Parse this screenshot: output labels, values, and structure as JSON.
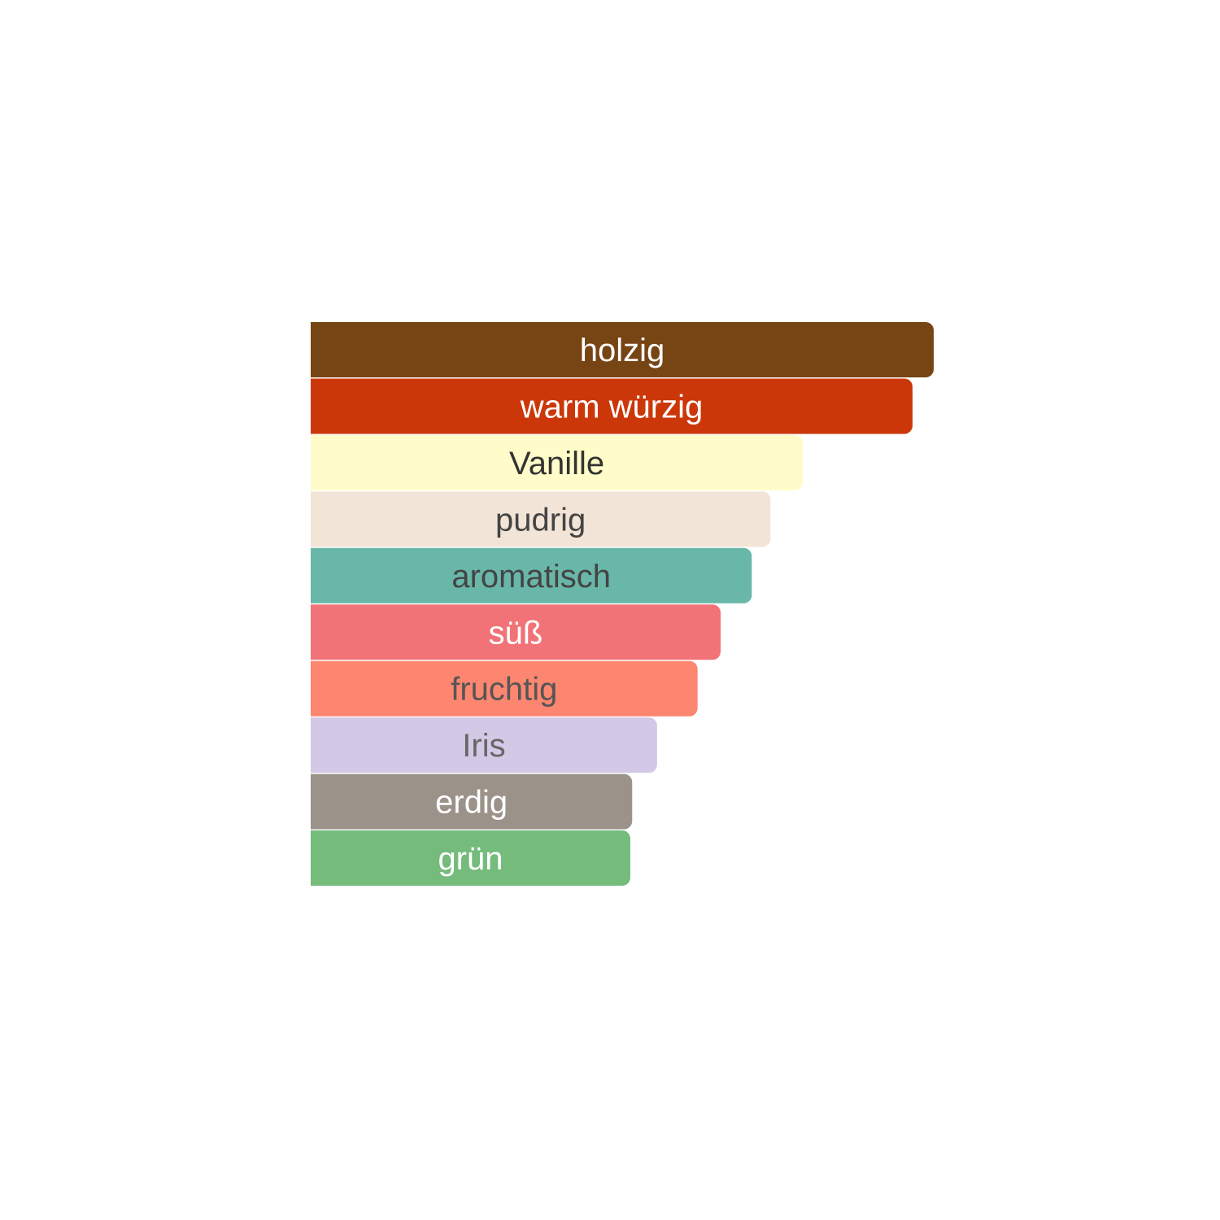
{
  "chart_data": {
    "type": "bar",
    "orientation": "horizontal",
    "categories": [
      "holzig",
      "warm würzig",
      "Vanille",
      "pudrig",
      "aromatisch",
      "süß",
      "fruchtig",
      "Iris",
      "erdig",
      "grün"
    ],
    "values": [
      100,
      96.6,
      79.0,
      73.8,
      70.8,
      65.8,
      62.1,
      55.6,
      51.6,
      51.3
    ],
    "colors": [
      "#774414",
      "#cc3709",
      "#fffcc9",
      "#f2e4d7",
      "#69b7a8",
      "#f17377",
      "#fd8670",
      "#d3c8e6",
      "#9b928a",
      "#74bb7c"
    ],
    "label_colors": [
      "#ffffff",
      "#ffffff",
      "#333333",
      "#444444",
      "#444444",
      "#ffffff",
      "#555555",
      "#666666",
      "#ffffff",
      "#ffffff"
    ],
    "xlim": [
      0,
      100
    ]
  }
}
